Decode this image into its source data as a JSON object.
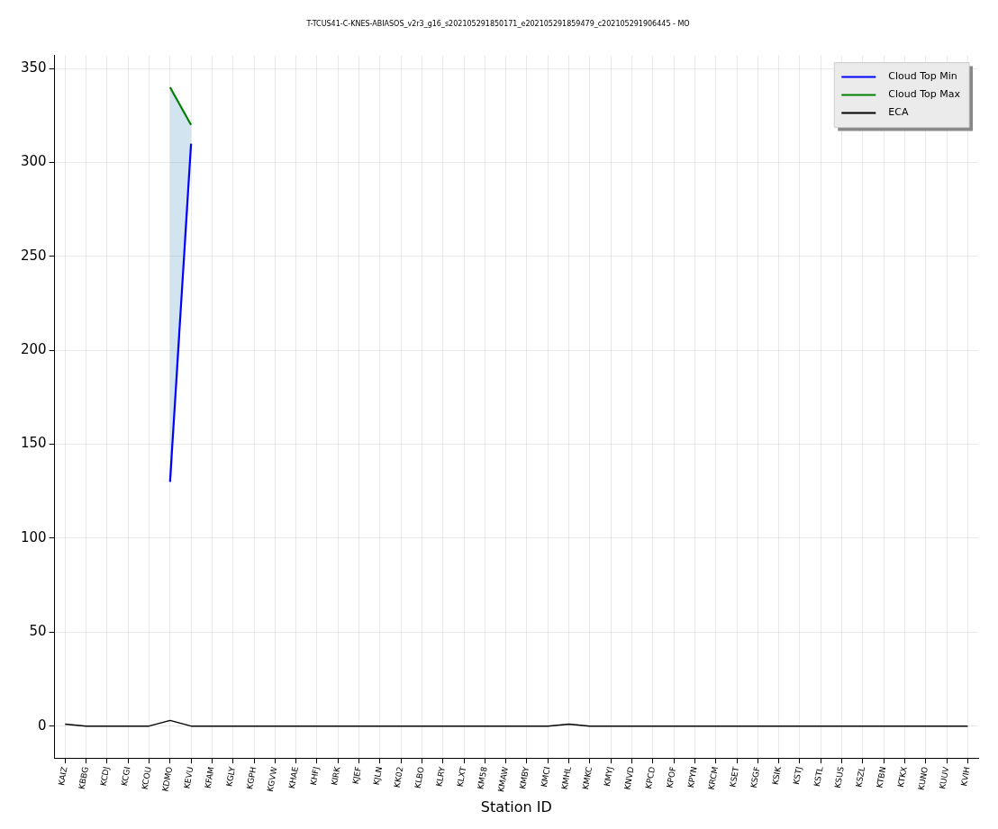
{
  "chart_data": {
    "type": "line",
    "title": "T-TCUS41-C-KNES-ABIASOS_v2r3_g16_s202105291850171_e202105291859479_c202105291906445 - MO",
    "xlabel": "Station ID",
    "categories": [
      "KAIZ",
      "KBBG",
      "KCDJ",
      "KCGI",
      "KCOU",
      "KDMO",
      "KEVU",
      "KFAM",
      "KGLY",
      "KGPH",
      "KGVW",
      "KHAE",
      "KHFJ",
      "KIRK",
      "KJEF",
      "KJLN",
      "KK02",
      "KLBO",
      "KLRY",
      "KLXT",
      "KM58",
      "KMAW",
      "KMBY",
      "KMCI",
      "KMHL",
      "KMKC",
      "KMYJ",
      "KNVD",
      "KPCD",
      "KPOF",
      "KPYN",
      "KRCM",
      "KSET",
      "KSGF",
      "KSIK",
      "KSTJ",
      "KSTL",
      "KSUS",
      "KSZL",
      "KTBN",
      "KTKX",
      "KUNO",
      "KUUV",
      "KVIH"
    ],
    "series": [
      {
        "name": "Cloud Top Min",
        "color": "#0000ff",
        "values": [
          null,
          null,
          null,
          null,
          null,
          130,
          310,
          null,
          null,
          null,
          null,
          null,
          null,
          null,
          null,
          null,
          null,
          null,
          null,
          null,
          null,
          null,
          null,
          null,
          null,
          null,
          null,
          null,
          null,
          null,
          null,
          null,
          null,
          null,
          null,
          null,
          null,
          null,
          null,
          null,
          null,
          null,
          null,
          null
        ],
        "lower": [
          null,
          null,
          null,
          null,
          null,
          130,
          310,
          null,
          null,
          null,
          null,
          null,
          null,
          null,
          null,
          null,
          null,
          null,
          null,
          null,
          null,
          null,
          null,
          null,
          null,
          null,
          null,
          null,
          null,
          null,
          null,
          null,
          null,
          null,
          null,
          null,
          null,
          null,
          null,
          null,
          null,
          null,
          null,
          null
        ],
        "upper": [
          null,
          null,
          null,
          null,
          null,
          340,
          320,
          null,
          null,
          null,
          null,
          null,
          null,
          null,
          null,
          null,
          null,
          null,
          null,
          null,
          null,
          null,
          null,
          null,
          null,
          null,
          null,
          null,
          null,
          null,
          null,
          null,
          null,
          null,
          null,
          null,
          null,
          null,
          null,
          null,
          null,
          null,
          null,
          null
        ]
      },
      {
        "name": "Cloud Top Max",
        "color": "#008000",
        "values": [
          null,
          null,
          null,
          null,
          null,
          340,
          320,
          null,
          null,
          null,
          null,
          null,
          null,
          null,
          null,
          null,
          null,
          null,
          null,
          null,
          null,
          null,
          null,
          null,
          null,
          null,
          null,
          null,
          null,
          null,
          null,
          null,
          null,
          null,
          null,
          null,
          null,
          null,
          null,
          null,
          null,
          null,
          null,
          null
        ]
      },
      {
        "name": "ECA",
        "color": "#000000",
        "values": [
          1,
          0,
          0,
          0,
          0,
          3,
          0,
          0,
          0,
          0,
          0,
          0,
          0,
          0,
          0,
          0,
          0,
          0,
          0,
          0,
          0,
          0,
          0,
          0,
          1,
          0,
          0,
          0,
          0,
          0,
          0,
          0,
          0,
          0,
          0,
          0,
          0,
          0,
          0,
          0,
          0,
          0,
          0,
          0
        ]
      }
    ],
    "ylim": [
      -17,
      357
    ],
    "yticks": [
      0,
      50,
      100,
      150,
      200,
      250,
      300,
      350
    ],
    "grid": true,
    "legend": "top right",
    "marker": "none",
    "line_style": "solid"
  }
}
